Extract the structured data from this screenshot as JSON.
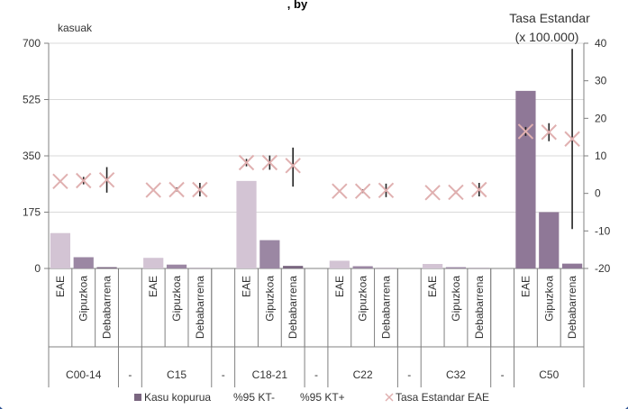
{
  "chart_data": {
    "type": "bar",
    "title_fragment": ", by",
    "left_axis_label": "kasuak",
    "right_axis_label_line1": "Tasa Estandar",
    "right_axis_label_line2": "(x 100.000)",
    "left_axis": {
      "min": 0,
      "max": 700,
      "ticks": [
        0,
        175,
        350,
        525,
        700
      ]
    },
    "right_axis": {
      "min": -20,
      "max": 40,
      "ticks": [
        -20,
        -10,
        0,
        10,
        20,
        30,
        40
      ]
    },
    "bar_colors": {
      "EAE": "#d3c4d4",
      "Gipuzkoa": "#9b87a3",
      "Debabarrena": "#7a6680"
    },
    "c50_colors": {
      "EAE": "#8f7897",
      "Gipuzkoa": "#8f7897",
      "Debabarrena": "#8f7897"
    },
    "marker_color": "#e0b0b0",
    "groups": [
      {
        "label": "C00-14",
        "items": [
          {
            "name": "EAE",
            "cases": 110,
            "rate": 3.2,
            "ci": [
              2.9,
              3.5
            ]
          },
          {
            "name": "Gipuzkoa",
            "cases": 35,
            "rate": 3.4,
            "ci": [
              2.4,
              4.4
            ]
          },
          {
            "name": "Debabarrena",
            "cases": 4,
            "rate": 3.6,
            "ci": [
              0.2,
              7.0
            ]
          }
        ]
      },
      {
        "label": "C15",
        "items": [
          {
            "name": "EAE",
            "cases": 33,
            "rate": 0.9,
            "ci": [
              0.7,
              1.1
            ]
          },
          {
            "name": "Gipuzkoa",
            "cases": 12,
            "rate": 1.0,
            "ci": [
              0.5,
              1.6
            ]
          },
          {
            "name": "Debabarrena",
            "cases": 1,
            "rate": 1.0,
            "ci": [
              -0.8,
              2.8
            ]
          }
        ]
      },
      {
        "label": "C18-21",
        "items": [
          {
            "name": "EAE",
            "cases": 272,
            "rate": 8.2,
            "ci": [
              7.2,
              9.2
            ]
          },
          {
            "name": "Gipuzkoa",
            "cases": 88,
            "rate": 8.2,
            "ci": [
              6.3,
              10.1
            ]
          },
          {
            "name": "Debabarrena",
            "cases": 8,
            "rate": 7.4,
            "ci": [
              1.8,
              12.2
            ]
          }
        ]
      },
      {
        "label": "C22",
        "items": [
          {
            "name": "EAE",
            "cases": 24,
            "rate": 0.6,
            "ci": [
              0.4,
              0.8
            ]
          },
          {
            "name": "Gipuzkoa",
            "cases": 7,
            "rate": 0.6,
            "ci": [
              0.1,
              1.1
            ]
          },
          {
            "name": "Debabarrena",
            "cases": 1,
            "rate": 0.8,
            "ci": [
              -1.0,
              2.6
            ]
          }
        ]
      },
      {
        "label": "C32",
        "items": [
          {
            "name": "EAE",
            "cases": 14,
            "rate": 0.2,
            "ci": [
              0.0,
              0.4
            ]
          },
          {
            "name": "Gipuzkoa",
            "cases": 4,
            "rate": 0.3,
            "ci": [
              -0.1,
              0.7
            ]
          },
          {
            "name": "Debabarrena",
            "cases": 1,
            "rate": 1.0,
            "ci": [
              -0.8,
              2.8
            ]
          }
        ]
      },
      {
        "label": "C50",
        "items": [
          {
            "name": "EAE",
            "cases": 552,
            "rate": 16.5,
            "ci": [
              15.3,
              17.7
            ]
          },
          {
            "name": "Gipuzkoa",
            "cases": 175,
            "rate": 16.3,
            "ci": [
              13.9,
              18.7
            ]
          },
          {
            "name": "Debabarrena",
            "cases": 15,
            "rate": 14.5,
            "ci": [
              -9.5,
              38.5
            ]
          }
        ]
      }
    ],
    "separator_label": "-",
    "legend": [
      {
        "label": "Kasu kopurua",
        "kind": "bar"
      },
      {
        "label": "%95 KT-",
        "kind": "none"
      },
      {
        "label": "%95 KT+",
        "kind": "none"
      },
      {
        "label": "Tasa Estandar EAE",
        "kind": "cross"
      }
    ]
  }
}
